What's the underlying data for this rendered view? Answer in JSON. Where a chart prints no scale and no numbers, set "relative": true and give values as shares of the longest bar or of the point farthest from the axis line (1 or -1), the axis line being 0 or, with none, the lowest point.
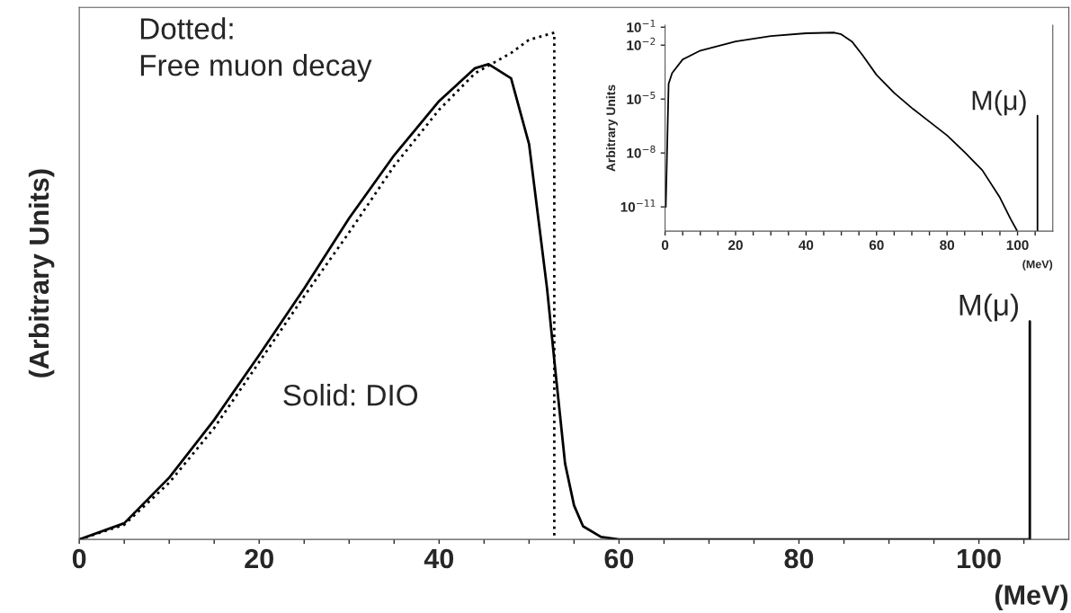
{
  "chart_data": [
    {
      "type": "line",
      "ylabel": "(Arbitrary Units)",
      "xlabel": "(MeV)",
      "relative": true,
      "xlim": [
        0,
        110
      ],
      "xticks": [
        0,
        {
          "value": 5,
          "label": null
        },
        {
          "value": 10,
          "label": null
        },
        {
          "value": 15,
          "label": null
        },
        20,
        {
          "value": 25,
          "label": null
        },
        {
          "value": 30,
          "label": null
        },
        {
          "value": 35,
          "label": null
        },
        40,
        {
          "value": 45,
          "label": null
        },
        {
          "value": 50,
          "label": null
        },
        {
          "value": 55,
          "label": null
        },
        60,
        {
          "value": 65,
          "label": null
        },
        {
          "value": 70,
          "label": null
        },
        {
          "value": 75,
          "label": null
        },
        80,
        {
          "value": 85,
          "label": null
        },
        {
          "value": 90,
          "label": null
        },
        {
          "value": 95,
          "label": null
        },
        100,
        {
          "value": 105,
          "label": null
        }
      ],
      "series": [
        {
          "color": "#000000",
          "line_style": "dotted",
          "x": [
            0,
            5,
            10,
            15,
            20,
            25,
            30,
            35,
            40,
            44,
            48,
            50,
            52.8,
            52.8
          ],
          "values": [
            0,
            0.029,
            0.112,
            0.22,
            0.35,
            0.48,
            0.606,
            0.737,
            0.848,
            0.92,
            0.96,
            0.986,
            1.0,
            0
          ]
        },
        {
          "color": "#000000",
          "line_style": "solid",
          "x": [
            0,
            5,
            10,
            15,
            20,
            25,
            30,
            35,
            40,
            44,
            45.5,
            48,
            50,
            52,
            53,
            54,
            55,
            56,
            58,
            60,
            105.66
          ],
          "values": [
            0,
            0.032,
            0.122,
            0.236,
            0.364,
            0.495,
            0.634,
            0.758,
            0.865,
            0.93,
            0.938,
            0.91,
            0.78,
            0.495,
            0.32,
            0.15,
            0.067,
            0.026,
            0.005,
            0,
            0
          ]
        },
        {
          "color": "#000000",
          "line_style": "solid",
          "x": [
            105.66,
            105.66
          ],
          "values": [
            0,
            0.43
          ]
        }
      ],
      "annotations": [
        "Dotted:\nFree muon decay",
        "Solid: DIO",
        {
          "text": "M(μ)",
          "x": 105.66,
          "y": 0.43
        }
      ]
    },
    {
      "type": "line",
      "ylabel": "Arbitrary Units",
      "xlabel": "(MeV)",
      "log": "y",
      "xlim": [
        0,
        110
      ],
      "xticks": [
        0,
        {
          "value": 5,
          "label": null
        },
        {
          "value": 10,
          "label": null
        },
        {
          "value": 15,
          "label": null
        },
        20,
        {
          "value": 25,
          "label": null
        },
        {
          "value": 30,
          "label": null
        },
        {
          "value": 35,
          "label": null
        },
        40,
        {
          "value": 45,
          "label": null
        },
        {
          "value": 50,
          "label": null
        },
        {
          "value": 55,
          "label": null
        },
        60,
        {
          "value": 65,
          "label": null
        },
        {
          "value": 70,
          "label": null
        },
        {
          "value": 75,
          "label": null
        },
        80,
        {
          "value": 85,
          "label": null
        },
        {
          "value": 90,
          "label": null
        },
        {
          "value": 95,
          "label": null
        },
        100,
        {
          "value": 105,
          "label": null
        }
      ],
      "ylim": [
        4.5e-13,
        0.13
      ],
      "yticks": [
        {
          "value": 0.1,
          "label": "10$^{−1}$"
        },
        {
          "value": 0.01,
          "label": "10$^{−2}$"
        },
        {
          "value": 1e-05,
          "label": "10$^{−5}$"
        },
        {
          "value": 1e-08,
          "label": "10$^{−8}$"
        },
        {
          "value": 1e-11,
          "label": "10$^{−11}$"
        }
      ],
      "series": [
        {
          "color": "#000000",
          "line_style": "solid",
          "x": [
            0.2,
            1,
            2,
            5,
            10,
            20,
            30,
            40,
            48,
            50,
            53,
            56,
            60,
            65,
            70,
            75,
            80,
            85,
            90,
            95,
            98,
            99.8
          ],
          "values": [
            1e-11,
            7e-05,
            0.00028,
            0.0016,
            0.005,
            0.016,
            0.032,
            0.046,
            0.05,
            0.04,
            0.016,
            0.0028,
            0.00022,
            2.2e-05,
            3.2e-06,
            5.5e-07,
            9.5e-08,
            1.1e-08,
            1.1e-09,
            3.3e-11,
            2.2e-12,
            5e-13
          ]
        },
        {
          "color": "#000000",
          "line_style": "solid",
          "x": [
            105.66,
            105.66
          ],
          "values": [
            4.5e-13,
            1.2e-06
          ]
        }
      ],
      "annotations": [
        {
          "text": "M(μ)",
          "x": 105.66,
          "y": 1.2e-06
        }
      ]
    }
  ]
}
